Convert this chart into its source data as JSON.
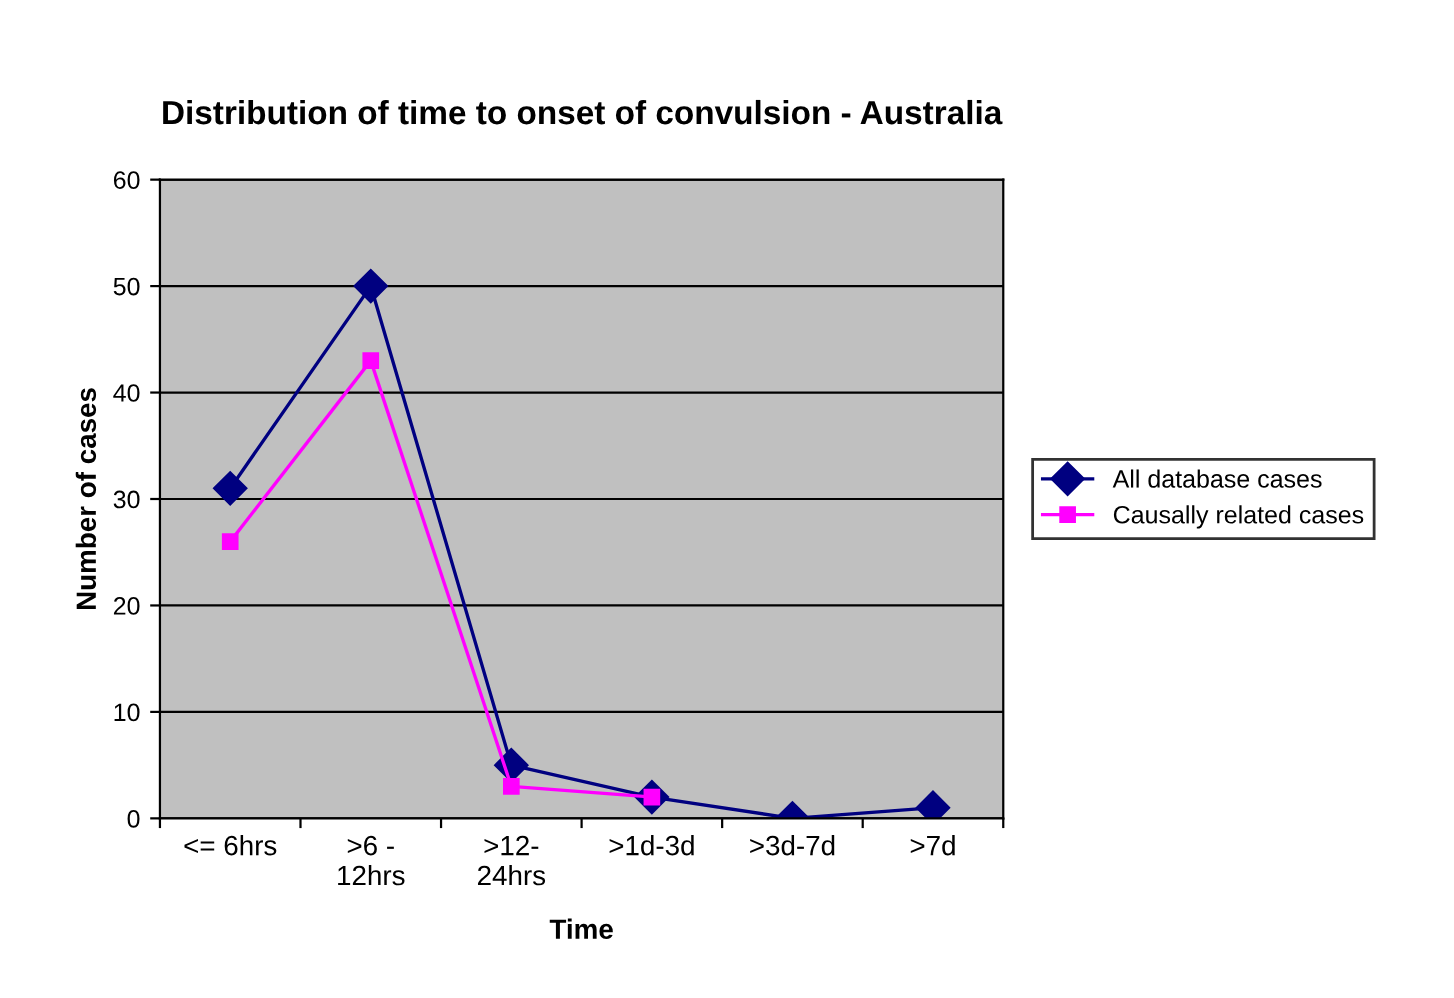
{
  "chart_data": {
    "type": "line",
    "title": "Distribution of time to onset of convulsion - Australia",
    "xlabel": "Time",
    "ylabel": "Number of cases",
    "categories": [
      "<= 6hrs",
      ">6 -\n12hrs",
      ">12-\n24hrs",
      ">1d-3d",
      ">3d-7d",
      ">7d"
    ],
    "series": [
      {
        "name": "All database cases",
        "color": "#000080",
        "marker": "diamond",
        "values": [
          31,
          50,
          5,
          2,
          0,
          1
        ]
      },
      {
        "name": "Causally related cases",
        "color": "#ff00ff",
        "marker": "square",
        "values": [
          26,
          43,
          3,
          2,
          null,
          null
        ]
      }
    ],
    "ylim": [
      0,
      60
    ],
    "yticks": [
      0,
      10,
      20,
      30,
      40,
      50,
      60
    ],
    "grid": "y",
    "legend": "right",
    "line_style": "solid"
  }
}
